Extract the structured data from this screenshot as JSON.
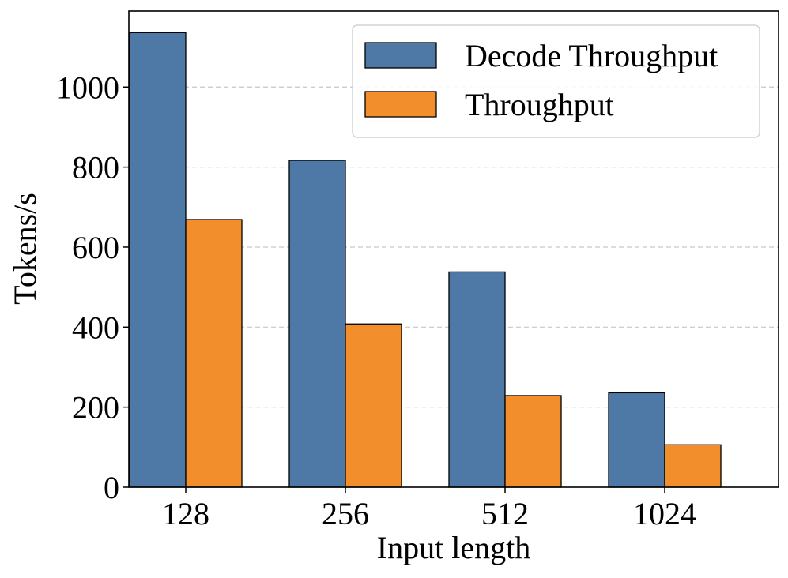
{
  "chart_data": {
    "type": "bar",
    "title": "",
    "xlabel": "Input length",
    "ylabel": "Tokens/s",
    "categories": [
      "128",
      "256",
      "512",
      "1024"
    ],
    "series": [
      {
        "name": "Decode Throughput",
        "color": "#4e79a7",
        "values": [
          1136,
          817,
          538,
          236
        ]
      },
      {
        "name": "Throughput",
        "color": "#f28e2b",
        "values": [
          669,
          408,
          229,
          106
        ]
      }
    ],
    "ylim": [
      0,
      1190
    ],
    "yticks": [
      0,
      200,
      400,
      600,
      800,
      1000
    ],
    "grid": true,
    "legend_position": "top-right"
  }
}
